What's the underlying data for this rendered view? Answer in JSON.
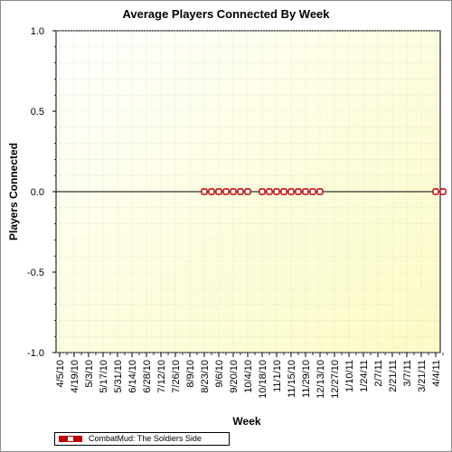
{
  "chart_data": {
    "type": "line",
    "title": "Average Players Connected By Week",
    "xlabel": "Week",
    "ylabel": "Players Connected",
    "ylim": [
      -1.0,
      1.0
    ],
    "ytick_labels": [
      "1.0",
      "0.5",
      "0.0",
      "-0.5",
      "-1.0"
    ],
    "ytick_values": [
      1.0,
      0.5,
      0.0,
      -0.5,
      -1.0
    ],
    "categories": [
      "4/5/10",
      "4/19/10",
      "5/3/10",
      "5/17/10",
      "5/31/10",
      "6/14/10",
      "6/28/10",
      "7/12/10",
      "7/26/10",
      "8/9/10",
      "8/23/10",
      "9/6/10",
      "9/20/10",
      "10/4/10",
      "10/18/10",
      "11/1/10",
      "11/15/10",
      "11/29/10",
      "12/13/10",
      "12/27/10",
      "1/10/11",
      "1/24/11",
      "2/7/11",
      "2/21/11",
      "3/7/11",
      "3/21/11",
      "4/4/11"
    ],
    "x_week_range": [
      0,
      53
    ],
    "grid": true,
    "legend_position": "bottom-left",
    "series": [
      {
        "name": "CombatMud: The Soldiers Side",
        "color": "#c00000",
        "points": [
          {
            "week": 20,
            "y": 0
          },
          {
            "week": 21,
            "y": 0
          },
          {
            "week": 22,
            "y": 0
          },
          {
            "week": 23,
            "y": 0
          },
          {
            "week": 24,
            "y": 0
          },
          {
            "week": 25,
            "y": 0
          },
          {
            "week": 26,
            "y": 0
          },
          {
            "week": 28,
            "y": 0
          },
          {
            "week": 29,
            "y": 0
          },
          {
            "week": 30,
            "y": 0
          },
          {
            "week": 31,
            "y": 0
          },
          {
            "week": 32,
            "y": 0
          },
          {
            "week": 33,
            "y": 0
          },
          {
            "week": 34,
            "y": 0
          },
          {
            "week": 35,
            "y": 0
          },
          {
            "week": 36,
            "y": 0
          },
          {
            "week": 52,
            "y": 0
          },
          {
            "week": 53,
            "y": 0
          }
        ]
      }
    ]
  }
}
